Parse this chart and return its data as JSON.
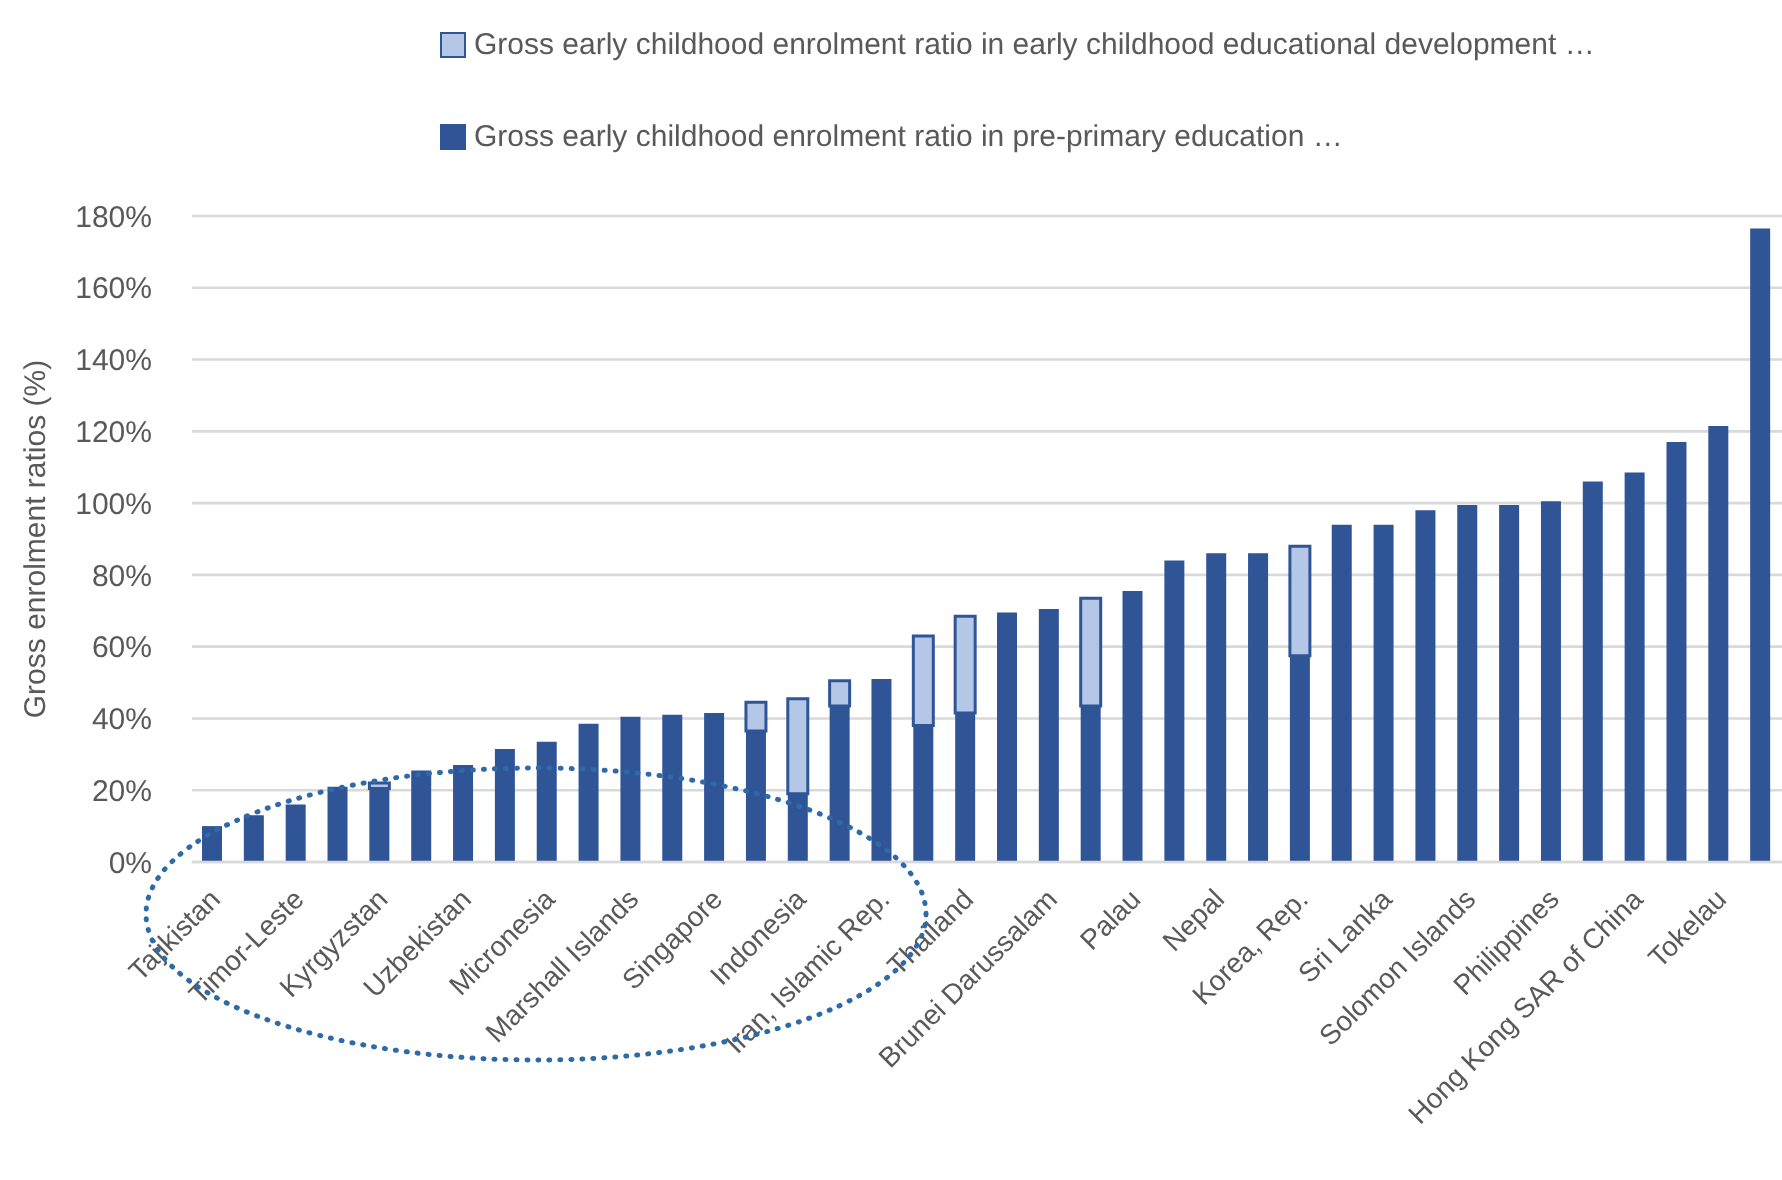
{
  "chart_data": {
    "type": "bar",
    "stacked": true,
    "categories": [
      "Tajikistan",
      null,
      "Timor-Leste",
      null,
      "Kyrgyzstan",
      null,
      "Uzbekistan",
      null,
      "Micronesia",
      null,
      "Marshall Islands",
      null,
      "Singapore",
      null,
      "Indonesia",
      null,
      "Iran, Islamic Rep.",
      null,
      "Thailand",
      null,
      "Brunei Darussalam",
      null,
      "Palau",
      null,
      "Nepal",
      null,
      "Korea, Rep.",
      null,
      "Sri Lanka",
      null,
      "Solomon Islands",
      null,
      "Philippines",
      null,
      "Hong Kong SAR of China",
      null,
      "Tokelau",
      null
    ],
    "series": [
      {
        "name": "Gross early childhood enrolment ratio in pre-primary education …",
        "color": "#2f5597",
        "values": [
          10,
          13,
          16,
          21,
          20.5,
          25.5,
          27,
          31.5,
          33.5,
          38.5,
          40.5,
          41,
          41.5,
          36.5,
          19,
          43.5,
          51,
          38,
          41.5,
          69.5,
          70.5,
          43.5,
          75.5,
          84,
          86,
          86,
          57.5,
          94,
          94,
          98,
          99.5,
          99.5,
          100.5,
          106,
          108.5,
          117,
          121.5,
          176.5
        ]
      },
      {
        "name": "Gross early childhood enrolment ratio in early childhood educational development …",
        "color": "#b4c7e7",
        "values": [
          null,
          null,
          null,
          null,
          1.5,
          null,
          null,
          null,
          null,
          null,
          null,
          null,
          null,
          8,
          26.5,
          7,
          null,
          25,
          27,
          null,
          null,
          30,
          null,
          null,
          null,
          null,
          30.5,
          null,
          null,
          null,
          null,
          null,
          null,
          null,
          null,
          null,
          null,
          null
        ]
      }
    ],
    "ylabel": "Gross enrolment ratios (%)",
    "ylim": [
      0,
      180
    ],
    "yticks": [
      {
        "value": 0,
        "label": "0%"
      },
      {
        "value": 20,
        "label": "20%"
      },
      {
        "value": 40,
        "label": "40%"
      },
      {
        "value": 60,
        "label": "60%"
      },
      {
        "value": 80,
        "label": "80%"
      },
      {
        "value": 100,
        "label": "100%"
      },
      {
        "value": 120,
        "label": "120%"
      },
      {
        "value": 140,
        "label": "140%"
      },
      {
        "value": 160,
        "label": "160%"
      },
      {
        "value": 180,
        "label": "180%"
      }
    ],
    "grid": "y",
    "legend": "top"
  }
}
